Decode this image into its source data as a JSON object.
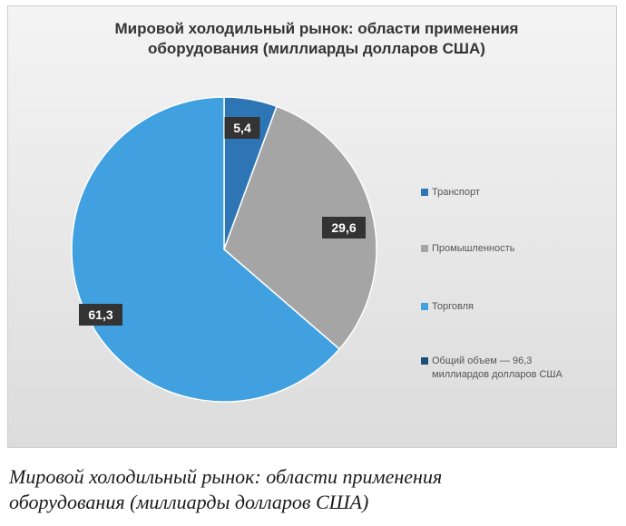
{
  "chart_data": {
    "type": "pie",
    "title": [
      "Мировой холодильный рынок: области применения",
      "оборудования (миллиарды долларов США)"
    ],
    "categories": [
      "Транспорт",
      "Промышленность",
      "Торговля"
    ],
    "values": [
      5.4,
      29.6,
      61.3
    ],
    "data_labels": [
      "5,4",
      "29,6",
      "61,3"
    ],
    "colors": [
      "#2e75b6",
      "#a5a5a5",
      "#41a1e0"
    ],
    "legend": {
      "placement": "right",
      "entries": [
        {
          "label": "Транспорт",
          "color": "#2e75b6"
        },
        {
          "label": "Промышленность",
          "color": "#a5a5a5"
        },
        {
          "label": "Торговля",
          "color": "#41a1e0"
        },
        {
          "label": "Общий объем — 96,3 миллиардов долларов США",
          "color": "#1f4e79"
        }
      ]
    }
  },
  "caption": [
    "Мировой холодильный рынок: области применения",
    "оборудования (миллиарды долларов США)"
  ]
}
